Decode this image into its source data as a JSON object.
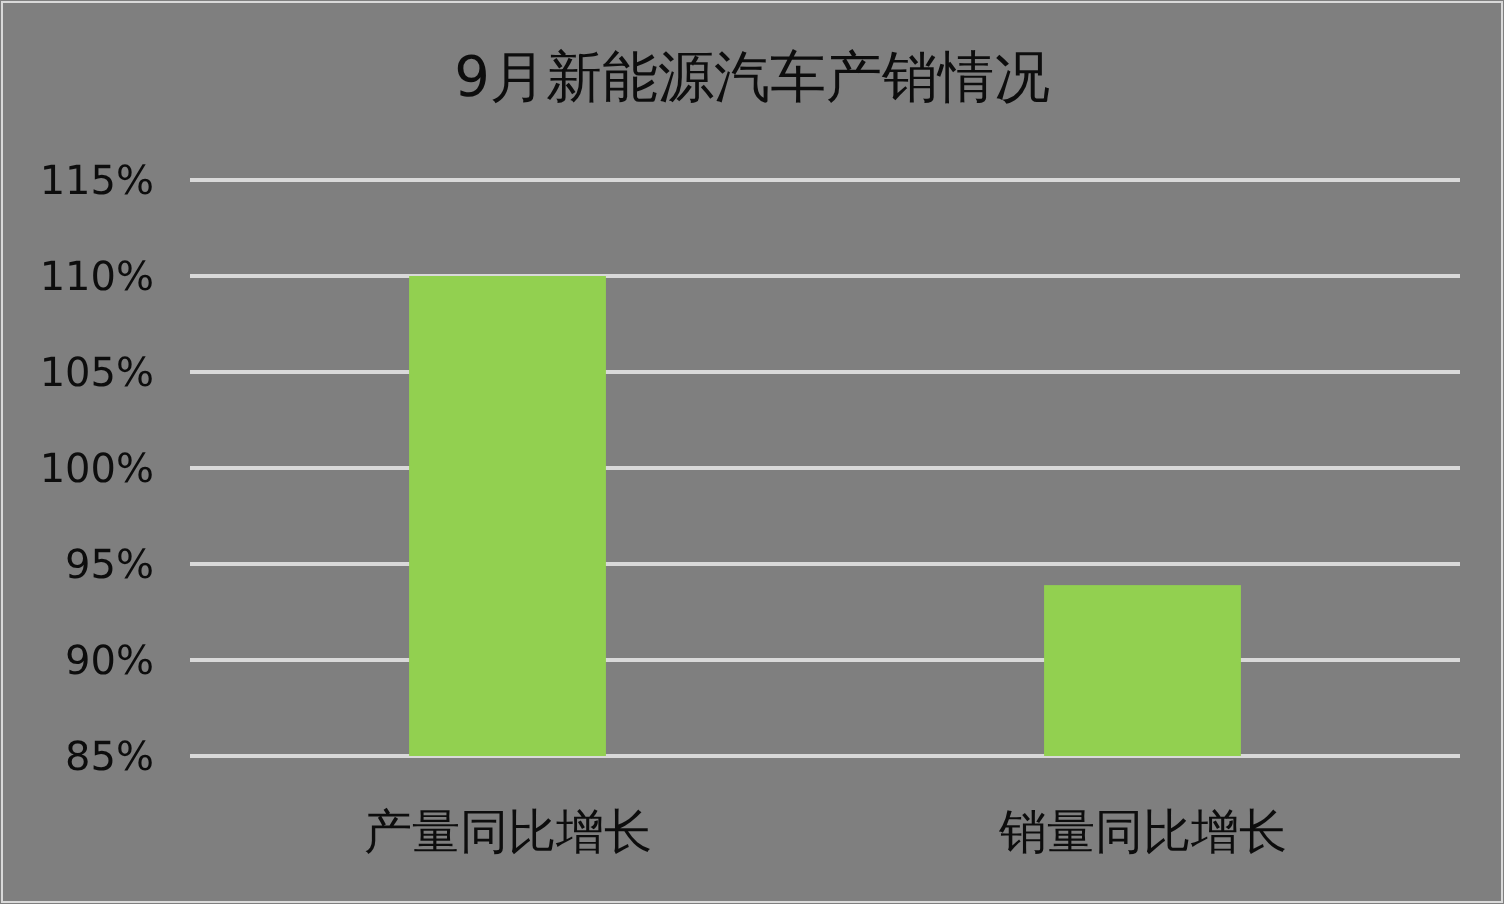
{
  "chart_data": {
    "type": "bar",
    "title": "9月新能源汽车产销情况",
    "categories": [
      "产量同比增长",
      "销量同比增长"
    ],
    "values": [
      110,
      93.9
    ],
    "color": "#92d050",
    "ylim": [
      85,
      115
    ],
    "yticks": [
      {
        "value": 85,
        "label": "85%"
      },
      {
        "value": 90,
        "label": "90%"
      },
      {
        "value": 95,
        "label": "95%"
      },
      {
        "value": 100,
        "label": "100%"
      },
      {
        "value": 105,
        "label": "105%"
      },
      {
        "value": 110,
        "label": "110%"
      },
      {
        "value": 115,
        "label": "115%"
      }
    ],
    "grid": "y"
  }
}
